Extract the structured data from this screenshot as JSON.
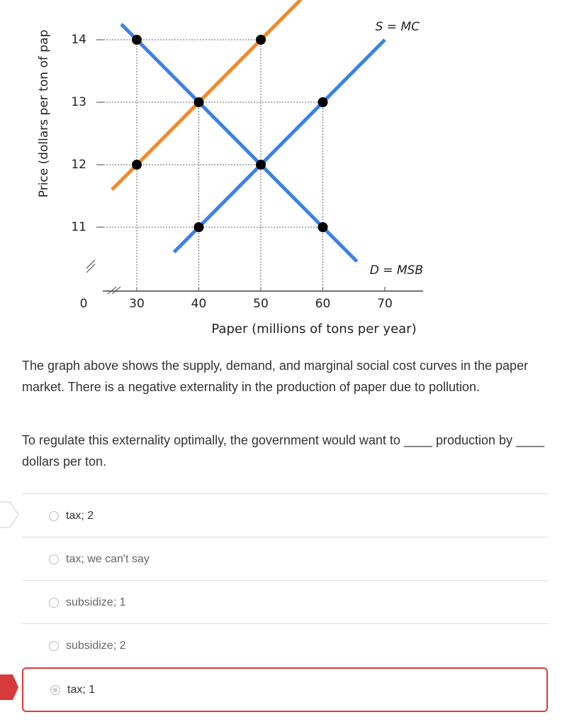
{
  "chart_data": {
    "type": "line",
    "y_label": "Price (dollars per ton of pap",
    "x_label": "Paper (millions of tons per year)",
    "origin_label": "0",
    "xlim": [
      24,
      76
    ],
    "ylim": [
      10,
      14.65
    ],
    "xticks": [
      30,
      40,
      50,
      60,
      70
    ],
    "yticks": [
      11,
      12,
      13,
      14
    ],
    "series": [
      {
        "name": "S = MC",
        "color": "#3b82e6",
        "x": [
          36,
          70
        ],
        "values": [
          10.6,
          14
        ]
      },
      {
        "name": "D = MSB",
        "color": "#3b82e6",
        "x": [
          27.5,
          65.5
        ],
        "values": [
          14.25,
          10.45
        ]
      },
      {
        "color": "#f08a2c",
        "x": [
          26,
          56.5
        ],
        "values": [
          11.6,
          14.65
        ]
      }
    ],
    "points": {
      "x": [
        30,
        50,
        40,
        60,
        30,
        50,
        40,
        60
      ],
      "values": [
        14,
        14,
        13,
        13,
        12,
        12,
        11,
        11
      ],
      "color": "#000000"
    }
  },
  "question": {
    "text": "The graph above shows the supply, demand, and marginal social cost curves in the paper market. There is a negative externality in the production of paper due to pollution.",
    "prompt": "To regulate this externality optimally, the government would want to ____ production by ____ dollars per ton."
  },
  "options": [
    "tax; 2",
    "tax; we can't say",
    "subsidize; 1",
    "subsidize; 2",
    "tax; 1"
  ],
  "selected": 4
}
